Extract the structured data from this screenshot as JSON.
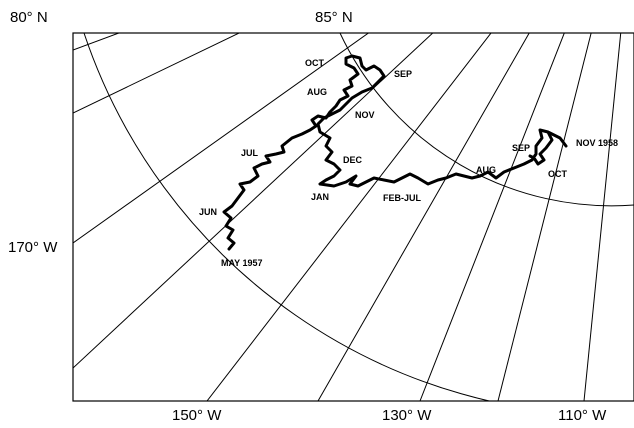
{
  "map": {
    "latitude_labels": [
      "80° N",
      "85° N"
    ],
    "longitude_labels": [
      "170° W",
      "150° W",
      "130° W",
      "110° W"
    ],
    "track_labels": [
      "MAY 1957",
      "JUN",
      "JUL",
      "AUG",
      "OCT",
      "SEP",
      "NOV",
      "DEC",
      "JAN",
      "FEB-JUL",
      "AUG",
      "SEP",
      "OCT",
      "NOV 1958"
    ],
    "colors": {
      "track": "#000000",
      "grid": "#000000",
      "background": "#ffffff"
    }
  }
}
